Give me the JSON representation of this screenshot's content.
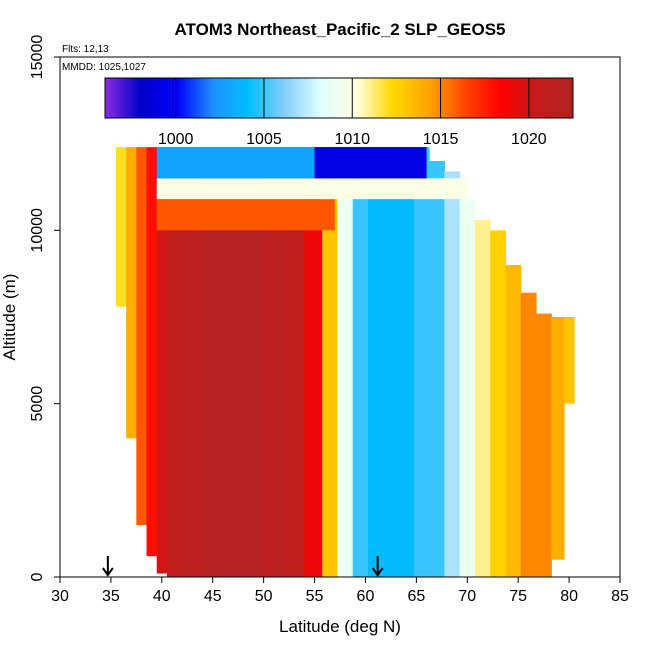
{
  "chart_data": {
    "type": "heatmap",
    "title": "ATOM3 Northeast_Pacific_2 SLP_GEOS5",
    "flights_label": "Flts: 12,13",
    "date_label": "MMDD: 1025,1027",
    "xlabel": "Latitude (deg N)",
    "ylabel": "Altitude (m)",
    "xlim": [
      30,
      85
    ],
    "ylim": [
      0,
      15000
    ],
    "x_ticks": [
      "30",
      "35",
      "40",
      "45",
      "50",
      "55",
      "60",
      "65",
      "70",
      "75",
      "80",
      "85"
    ],
    "y_ticks": [
      "0",
      "5000",
      "10000",
      "15000"
    ],
    "colorbar": {
      "range": [
        996,
        1022.5
      ],
      "ticks": [
        "1000",
        "1005",
        "1010",
        "1015",
        "1020"
      ],
      "stops": [
        "#8a2be2",
        "#0000c8",
        "#0000ff",
        "#1e90ff",
        "#00bfff",
        "#87cefa",
        "#e0ffff",
        "#ffffe0",
        "#ffd700",
        "#ffa500",
        "#ff4500",
        "#ff0000",
        "#c41a1a",
        "#b22222"
      ]
    },
    "arrows_at_latitude": [
      34.7,
      61.2
    ],
    "columns": [
      {
        "lat": 36.0,
        "alt_min": 7800,
        "alt_max": 12400,
        "slp": 1012
      },
      {
        "lat": 37.0,
        "alt_min": 4000,
        "alt_max": 12400,
        "slp": 1014
      },
      {
        "lat": 38.0,
        "alt_min": 1500,
        "alt_max": 12400,
        "slp": 1016
      },
      {
        "lat": 39.0,
        "alt_min": 600,
        "alt_max": 12400,
        "slp": 1018
      },
      {
        "lat": 40.0,
        "alt_min": 100,
        "alt_max": 12400,
        "slp": 1020
      },
      {
        "lat": 41.0,
        "alt_min": 0,
        "alt_max": 12400,
        "slp": 1021
      },
      {
        "lat": 43.0,
        "alt_min": 0,
        "alt_max": 12400,
        "slp": 1021.5
      },
      {
        "lat": 45.0,
        "alt_min": 0,
        "alt_max": 12400,
        "slp": 1022
      },
      {
        "lat": 47.0,
        "alt_min": 0,
        "alt_max": 12400,
        "slp": 1022
      },
      {
        "lat": 49.0,
        "alt_min": 0,
        "alt_max": 12400,
        "slp": 1022
      },
      {
        "lat": 51.0,
        "alt_min": 0,
        "alt_max": 12400,
        "slp": 1021.5
      },
      {
        "lat": 53.0,
        "alt_min": 0,
        "alt_max": 12400,
        "slp": 1021
      },
      {
        "lat": 55.0,
        "alt_min": 0,
        "alt_max": 12400,
        "slp": 1019
      },
      {
        "lat": 56.5,
        "alt_min": 0,
        "alt_max": 12400,
        "slp": 1013
      },
      {
        "lat": 58.0,
        "alt_min": 0,
        "alt_max": 12400,
        "slp": 1009
      },
      {
        "lat": 59.5,
        "alt_min": 0,
        "alt_max": 12400,
        "slp": 1005
      },
      {
        "lat": 61.0,
        "alt_min": 0,
        "alt_max": 12400,
        "slp": 1004
      },
      {
        "lat": 62.5,
        "alt_min": 0,
        "alt_max": 12400,
        "slp": 1004
      },
      {
        "lat": 64.0,
        "alt_min": 0,
        "alt_max": 12400,
        "slp": 1004
      },
      {
        "lat": 65.5,
        "alt_min": 0,
        "alt_max": 12400,
        "slp": 1005
      },
      {
        "lat": 67.0,
        "alt_min": 0,
        "alt_max": 12000,
        "slp": 1005
      },
      {
        "lat": 68.5,
        "alt_min": 0,
        "alt_max": 11700,
        "slp": 1007
      },
      {
        "lat": 70.0,
        "alt_min": 0,
        "alt_max": 10900,
        "slp": 1009
      },
      {
        "lat": 71.5,
        "alt_min": 0,
        "alt_max": 10300,
        "slp": 1011
      },
      {
        "lat": 73.0,
        "alt_min": 0,
        "alt_max": 10000,
        "slp": 1012.5
      },
      {
        "lat": 74.5,
        "alt_min": 0,
        "alt_max": 9000,
        "slp": 1013.5
      },
      {
        "lat": 76.0,
        "alt_min": 0,
        "alt_max": 8200,
        "slp": 1015
      },
      {
        "lat": 77.5,
        "alt_min": 0,
        "alt_max": 7600,
        "slp": 1015
      },
      {
        "lat": 79.0,
        "alt_min": 500,
        "alt_max": 7500,
        "slp": 1014
      },
      {
        "lat": 80.0,
        "alt_min": 5000,
        "alt_max": 7500,
        "slp": 1013
      }
    ],
    "bands": [
      {
        "lat_min": 39.5,
        "lat_max": 57.0,
        "alt_min": 10000,
        "alt_max": 10900,
        "slp": 1016
      },
      {
        "lat_min": 39.5,
        "lat_max": 70.0,
        "alt_min": 10900,
        "alt_max": 11500,
        "slp": 1010
      },
      {
        "lat_min": 39.5,
        "lat_max": 66.0,
        "alt_min": 11500,
        "alt_max": 12400,
        "slp": 1003
      },
      {
        "lat_min": 55.0,
        "lat_max": 66.0,
        "alt_min": 11500,
        "alt_max": 12400,
        "slp": 999
      }
    ]
  }
}
